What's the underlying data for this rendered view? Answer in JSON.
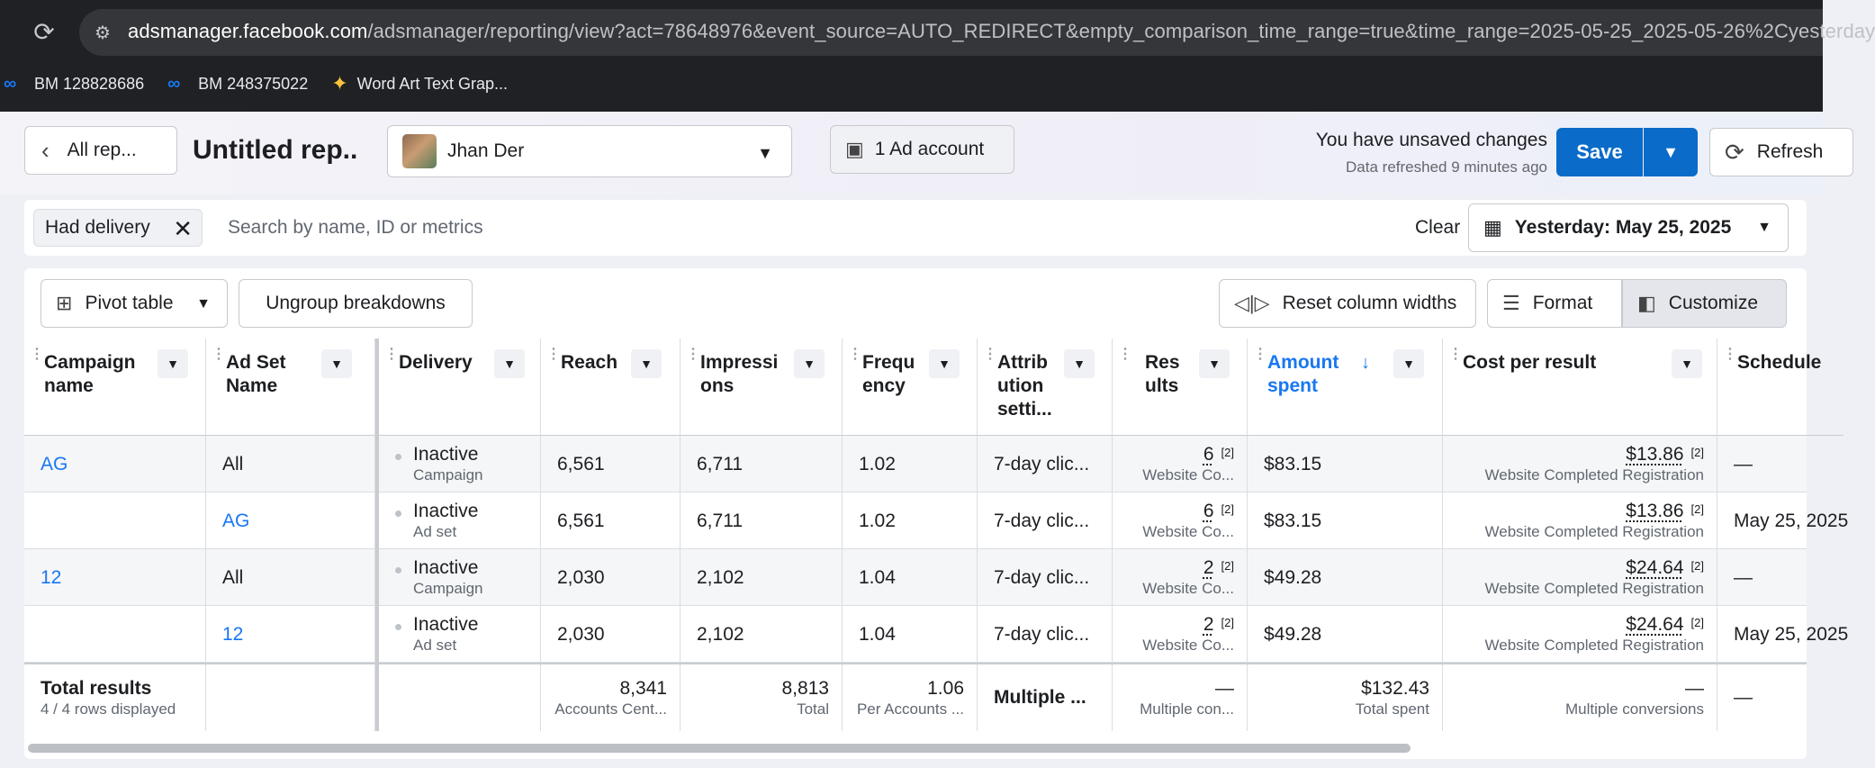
{
  "browser": {
    "url_host": "adsmanager.facebook.com",
    "url_path": "/adsmanager/reporting/view?act=78648976&event_source=AUTO_REDIRECT&empty_comparison_time_range=true&time_range=2025-05-25_2025-05-26%2Cyesterday",
    "bookmarks": [
      "BM 128828686",
      "BM 248375022",
      "Word Art Text Grap..."
    ]
  },
  "header": {
    "back_label": "All rep...",
    "title": "Untitled rep..",
    "account_name": "Jhan Der",
    "ad_account_label": "1 Ad account",
    "unsaved": "You have unsaved changes",
    "refreshed": "Data refreshed 9 minutes ago",
    "save_label": "Save",
    "refresh_label": "Refresh"
  },
  "filter": {
    "chip_label": "Had delivery",
    "search_placeholder": "Search by name, ID or metrics",
    "clear_label": "Clear",
    "date_label": "Yesterday: May 25, 2025"
  },
  "toolbar": {
    "pivot_label": "Pivot table",
    "ungroup_label": "Ungroup breakdowns",
    "reset_label": "Reset column widths",
    "format_label": "Format",
    "customize_label": "Customize"
  },
  "columns": {
    "campaign": "Campaign name",
    "adset": "Ad Set Name",
    "delivery": "Delivery",
    "reach": "Reach",
    "impressions": "Impressi ons",
    "frequency": "Frequ ency",
    "attribution": "Attrib ution setti...",
    "results": "Res ults",
    "amount": "Amount spent",
    "cpr": "Cost per result",
    "schedule": "Schedule"
  },
  "rows": [
    {
      "campaign": "AG",
      "adset": "All",
      "delivery": "Inactive",
      "delivery_sub": "Campaign",
      "reach": "6,561",
      "impressions": "6,711",
      "frequency": "1.02",
      "attribution": "7-day clic...",
      "results": "6",
      "results_sub": "Website Co...",
      "amount": "$83.15",
      "cpr": "$13.86",
      "cpr_sub": "Website Completed Registration",
      "schedule": "—",
      "fn": "[2]"
    },
    {
      "campaign": "",
      "adset": "AG",
      "delivery": "Inactive",
      "delivery_sub": "Ad set",
      "reach": "6,561",
      "impressions": "6,711",
      "frequency": "1.02",
      "attribution": "7-day clic...",
      "results": "6",
      "results_sub": "Website Co...",
      "amount": "$83.15",
      "cpr": "$13.86",
      "cpr_sub": "Website Completed Registration",
      "schedule": "May 25, 2025",
      "fn": "[2]"
    },
    {
      "campaign": "12",
      "adset": "All",
      "delivery": "Inactive",
      "delivery_sub": "Campaign",
      "reach": "2,030",
      "impressions": "2,102",
      "frequency": "1.04",
      "attribution": "7-day clic...",
      "results": "2",
      "results_sub": "Website Co...",
      "amount": "$49.28",
      "cpr": "$24.64",
      "cpr_sub": "Website Completed Registration",
      "schedule": "—",
      "fn": "[2]"
    },
    {
      "campaign": "",
      "adset": "12",
      "delivery": "Inactive",
      "delivery_sub": "Ad set",
      "reach": "2,030",
      "impressions": "2,102",
      "frequency": "1.04",
      "attribution": "7-day clic...",
      "results": "2",
      "results_sub": "Website Co...",
      "amount": "$49.28",
      "cpr": "$24.64",
      "cpr_sub": "Website Completed Registration",
      "schedule": "May 25, 2025",
      "fn": "[2]"
    }
  ],
  "totals": {
    "label": "Total results",
    "sub": "4 / 4 rows displayed",
    "reach": "8,341",
    "reach_sub": "Accounts Cent...",
    "impressions": "8,813",
    "impressions_sub": "Total",
    "frequency": "1.06",
    "frequency_sub": "Per Accounts ...",
    "attribution": "Multiple ...",
    "results": "—",
    "results_sub": "Multiple con...",
    "amount": "$132.43",
    "amount_sub": "Total spent",
    "cpr": "—",
    "cpr_sub": "Multiple conversions",
    "schedule": "—"
  },
  "colors": {
    "accent": "#1877f2",
    "save": "#0a6bc9"
  }
}
